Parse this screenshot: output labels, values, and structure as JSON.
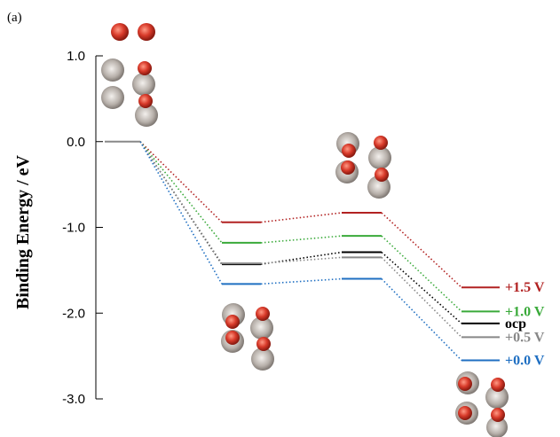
{
  "chart_data": {
    "type": "line",
    "panel_label": "(a)",
    "ylabel": "Binding Energy / eV",
    "ylim": [
      -3.0,
      1.0
    ],
    "yticks": [
      1.0,
      0.0,
      -1.0,
      -2.0,
      -3.0
    ],
    "ytick_labels": [
      "1.0",
      "0.0",
      "-1.0",
      "-2.0",
      "-3.0"
    ],
    "steps": [
      1,
      2,
      3,
      4
    ],
    "initial_energy": 0.0,
    "series": [
      {
        "name": "+1.5 V",
        "values": [
          0.0,
          -0.94,
          -0.83,
          -1.7
        ],
        "color": "#b22222"
      },
      {
        "name": "+1.0 V",
        "values": [
          0.0,
          -1.18,
          -1.1,
          -1.98
        ],
        "color": "#3aaa3a"
      },
      {
        "name": "ocp",
        "values": [
          0.0,
          -1.43,
          -1.29,
          -2.12
        ],
        "color": "#000000"
      },
      {
        "name": "+0.5 V",
        "values": [
          0.0,
          -1.42,
          -1.35,
          -2.28
        ],
        "color": "#888888"
      },
      {
        "name": "+0.0 V",
        "values": [
          0.0,
          -1.66,
          -1.6,
          -2.55
        ],
        "color": "#1f6fc2"
      }
    ],
    "grid": false,
    "legend": "right"
  },
  "colors": {
    "oxygen": "#d83a2a",
    "metal": "#b7b0aa"
  }
}
